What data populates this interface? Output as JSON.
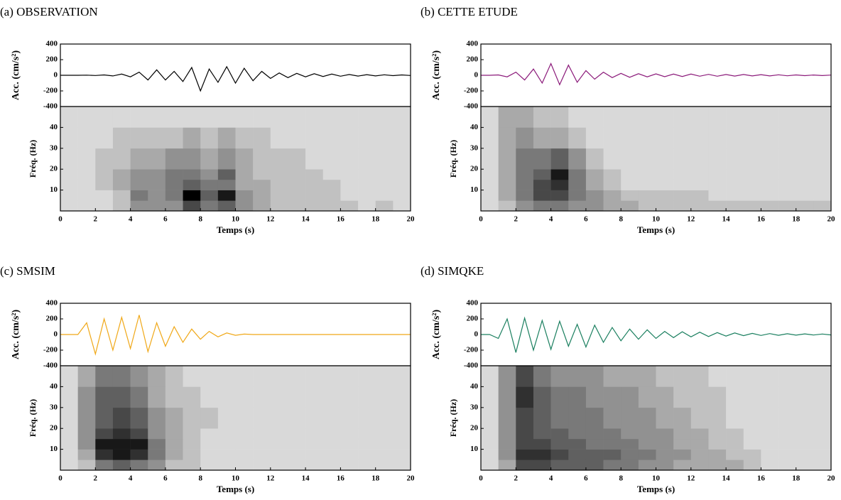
{
  "chart_data": [
    {
      "type": "line",
      "title": "(a) OBSERVATION",
      "ylabel": "Acc. (cm/s²)",
      "x": [
        0,
        0.5,
        1,
        1.5,
        2,
        2.5,
        3,
        3.5,
        4,
        4.5,
        5,
        5.5,
        6,
        6.5,
        7,
        7.5,
        8,
        8.5,
        9,
        9.5,
        10,
        10.5,
        11,
        11.5,
        12,
        12.5,
        13,
        13.5,
        14,
        14.5,
        15,
        15.5,
        16,
        16.5,
        17,
        17.5,
        18,
        18.5,
        19,
        19.5,
        20
      ],
      "series": [
        {
          "color": "#000000",
          "values": [
            0,
            0,
            0,
            2,
            -3,
            5,
            -8,
            15,
            -20,
            40,
            -60,
            70,
            -60,
            50,
            -80,
            100,
            -200,
            80,
            -90,
            110,
            -100,
            90,
            -70,
            50,
            -40,
            30,
            -30,
            25,
            -20,
            20,
            -15,
            15,
            -12,
            10,
            -10,
            8,
            -8,
            6,
            -5,
            5,
            -3
          ]
        }
      ],
      "xlim": [
        0,
        20
      ],
      "ylim": [
        -400,
        400
      ],
      "yticks": [
        -400,
        -200,
        0,
        200,
        400
      ]
    },
    {
      "type": "heatmap",
      "ylabel": "Fréq. (Hz)",
      "xlabel": "Temps (s)",
      "x_edges": [
        0,
        1,
        2,
        3,
        4,
        5,
        6,
        7,
        8,
        9,
        10,
        11,
        12,
        13,
        14,
        15,
        16,
        17,
        18,
        19,
        20
      ],
      "y_edges": [
        0,
        5,
        10,
        15,
        20,
        30,
        40,
        50
      ],
      "values": [
        [
          0,
          0,
          0,
          1,
          3,
          3,
          3,
          6,
          4,
          5,
          3,
          2,
          1,
          1,
          1,
          1,
          1,
          0,
          1,
          0
        ],
        [
          0,
          0,
          0,
          1,
          4,
          3,
          4,
          9,
          5,
          8,
          3,
          2,
          1,
          1,
          1,
          1,
          0,
          0,
          0,
          0
        ],
        [
          0,
          0,
          1,
          2,
          3,
          3,
          4,
          5,
          4,
          4,
          2,
          2,
          1,
          1,
          1,
          1,
          0,
          0,
          0,
          0
        ],
        [
          0,
          0,
          1,
          2,
          3,
          3,
          4,
          4,
          3,
          5,
          2,
          1,
          1,
          1,
          1,
          0,
          0,
          0,
          0,
          0
        ],
        [
          0,
          0,
          1,
          1,
          2,
          2,
          3,
          3,
          2,
          3,
          2,
          1,
          1,
          1,
          0,
          0,
          0,
          0,
          0,
          0
        ],
        [
          0,
          0,
          0,
          1,
          1,
          1,
          1,
          2,
          1,
          2,
          1,
          1,
          0,
          0,
          0,
          0,
          0,
          0,
          0,
          0
        ],
        [
          0,
          0,
          0,
          0,
          0,
          0,
          0,
          0,
          0,
          0,
          0,
          0,
          0,
          0,
          0,
          0,
          0,
          0,
          0,
          0
        ]
      ],
      "xlim": [
        0,
        20
      ],
      "ylim": [
        0,
        50
      ],
      "xticks": [
        0,
        2,
        4,
        6,
        8,
        10,
        12,
        14,
        16,
        18,
        20
      ],
      "yticks": [
        10,
        20,
        30,
        40
      ]
    },
    {
      "type": "line",
      "title": "(b) CETTE ETUDE",
      "ylabel": "Acc. (cm/s²)",
      "x": [
        0,
        0.5,
        1,
        1.5,
        2,
        2.5,
        3,
        3.5,
        4,
        4.5,
        5,
        5.5,
        6,
        6.5,
        7,
        7.5,
        8,
        8.5,
        9,
        9.5,
        10,
        10.5,
        11,
        11.5,
        12,
        12.5,
        13,
        13.5,
        14,
        14.5,
        15,
        15.5,
        16,
        16.5,
        17,
        17.5,
        18,
        18.5,
        19,
        19.5,
        20
      ],
      "series": [
        {
          "color": "#8b1a7a",
          "values": [
            0,
            0,
            5,
            -20,
            40,
            -60,
            80,
            -100,
            150,
            -120,
            130,
            -90,
            60,
            -50,
            40,
            -30,
            25,
            -25,
            20,
            -20,
            18,
            -18,
            15,
            -15,
            15,
            -12,
            12,
            -12,
            10,
            -10,
            10,
            -8,
            8,
            -8,
            6,
            -6,
            5,
            -5,
            4,
            -4,
            3
          ]
        }
      ],
      "xlim": [
        0,
        20
      ],
      "ylim": [
        -400,
        400
      ],
      "yticks": [
        -400,
        -200,
        0,
        200,
        400
      ]
    },
    {
      "type": "heatmap",
      "ylabel": "Fréq. (Hz)",
      "xlabel": "Temps (s)",
      "x_edges": [
        0,
        1,
        2,
        3,
        4,
        5,
        6,
        7,
        8,
        9,
        10,
        11,
        12,
        13,
        14,
        15,
        16,
        17,
        18,
        19,
        20
      ],
      "y_edges": [
        0,
        5,
        10,
        15,
        20,
        30,
        40,
        50
      ],
      "values": [
        [
          0,
          1,
          3,
          4,
          4,
          3,
          3,
          2,
          2,
          1,
          1,
          1,
          1,
          1,
          1,
          1,
          1,
          1,
          1,
          1
        ],
        [
          0,
          2,
          4,
          6,
          6,
          4,
          3,
          2,
          1,
          1,
          1,
          1,
          1,
          0,
          0,
          0,
          0,
          0,
          0,
          0
        ],
        [
          0,
          2,
          4,
          6,
          7,
          4,
          2,
          1,
          0,
          0,
          0,
          0,
          0,
          0,
          0,
          0,
          0,
          0,
          0,
          0
        ],
        [
          0,
          2,
          4,
          5,
          8,
          4,
          2,
          1,
          0,
          0,
          0,
          0,
          0,
          0,
          0,
          0,
          0,
          0,
          0,
          0
        ],
        [
          0,
          2,
          4,
          4,
          5,
          3,
          1,
          0,
          0,
          0,
          0,
          0,
          0,
          0,
          0,
          0,
          0,
          0,
          0,
          0
        ],
        [
          0,
          2,
          3,
          2,
          2,
          1,
          0,
          0,
          0,
          0,
          0,
          0,
          0,
          0,
          0,
          0,
          0,
          0,
          0,
          0
        ],
        [
          0,
          2,
          2,
          1,
          1,
          0,
          0,
          0,
          0,
          0,
          0,
          0,
          0,
          0,
          0,
          0,
          0,
          0,
          0,
          0
        ]
      ],
      "xlim": [
        0,
        20
      ],
      "ylim": [
        0,
        50
      ],
      "xticks": [
        0,
        2,
        4,
        6,
        8,
        10,
        12,
        14,
        16,
        18,
        20
      ],
      "yticks": [
        10,
        20,
        30,
        40
      ]
    },
    {
      "type": "line",
      "title": "(c) SMSIM",
      "ylabel": "Acc. (cm/s²)",
      "x": [
        0,
        0.5,
        1,
        1.5,
        2,
        2.5,
        3,
        3.5,
        4,
        4.5,
        5,
        5.5,
        6,
        6.5,
        7,
        7.5,
        8,
        8.5,
        9,
        9.5,
        10,
        10.5,
        11,
        11.5,
        12,
        12.5,
        13,
        13.5,
        14,
        14.5,
        15,
        15.5,
        16,
        16.5,
        17,
        17.5,
        18,
        18.5,
        19,
        19.5,
        20
      ],
      "series": [
        {
          "color": "#f0a818",
          "values": [
            0,
            0,
            0,
            150,
            -250,
            200,
            -200,
            220,
            -180,
            250,
            -220,
            150,
            -150,
            100,
            -100,
            70,
            -60,
            40,
            -30,
            20,
            -10,
            5,
            0,
            0,
            0,
            0,
            0,
            0,
            0,
            0,
            0,
            0,
            0,
            0,
            0,
            0,
            0,
            0,
            0,
            0,
            0
          ]
        }
      ],
      "xlim": [
        0,
        20
      ],
      "ylim": [
        -400,
        400
      ],
      "yticks": [
        -400,
        -200,
        0,
        200,
        400
      ]
    },
    {
      "type": "heatmap",
      "ylabel": "Fréq. (Hz)",
      "xlabel": "Temps (s)",
      "x_edges": [
        0,
        1,
        2,
        3,
        4,
        5,
        6,
        7,
        8,
        9,
        10,
        11,
        12,
        13,
        14,
        15,
        16,
        17,
        18,
        19,
        20
      ],
      "y_edges": [
        0,
        5,
        10,
        15,
        20,
        30,
        40,
        50
      ],
      "values": [
        [
          0,
          1,
          4,
          5,
          4,
          3,
          1,
          1,
          0,
          0,
          0,
          0,
          0,
          0,
          0,
          0,
          0,
          0,
          0,
          0
        ],
        [
          0,
          2,
          7,
          8,
          7,
          4,
          2,
          1,
          0,
          0,
          0,
          0,
          0,
          0,
          0,
          0,
          0,
          0,
          0,
          0
        ],
        [
          0,
          3,
          8,
          8,
          8,
          4,
          2,
          1,
          0,
          0,
          0,
          0,
          0,
          0,
          0,
          0,
          0,
          0,
          0,
          0
        ],
        [
          0,
          3,
          6,
          7,
          6,
          3,
          2,
          1,
          0,
          0,
          0,
          0,
          0,
          0,
          0,
          0,
          0,
          0,
          0,
          0
        ],
        [
          0,
          3,
          5,
          6,
          5,
          3,
          2,
          1,
          1,
          0,
          0,
          0,
          0,
          0,
          0,
          0,
          0,
          0,
          0,
          0
        ],
        [
          0,
          3,
          5,
          5,
          4,
          2,
          1,
          1,
          0,
          0,
          0,
          0,
          0,
          0,
          0,
          0,
          0,
          0,
          0,
          0
        ],
        [
          0,
          2,
          4,
          4,
          3,
          2,
          1,
          0,
          0,
          0,
          0,
          0,
          0,
          0,
          0,
          0,
          0,
          0,
          0,
          0
        ]
      ],
      "xlim": [
        0,
        20
      ],
      "ylim": [
        0,
        50
      ],
      "xticks": [
        0,
        2,
        4,
        6,
        8,
        10,
        12,
        14,
        16,
        18,
        20
      ],
      "yticks": [
        10,
        20,
        30,
        40
      ]
    },
    {
      "type": "line",
      "title": "(d) SIMQKE",
      "ylabel": "Acc. (cm/s²)",
      "x": [
        0,
        0.5,
        1,
        1.5,
        2,
        2.5,
        3,
        3.5,
        4,
        4.5,
        5,
        5.5,
        6,
        6.5,
        7,
        7.5,
        8,
        8.5,
        9,
        9.5,
        10,
        10.5,
        11,
        11.5,
        12,
        12.5,
        13,
        13.5,
        14,
        14.5,
        15,
        15.5,
        16,
        16.5,
        17,
        17.5,
        18,
        18.5,
        19,
        19.5,
        20
      ],
      "series": [
        {
          "color": "#1a7f5f",
          "values": [
            0,
            0,
            -50,
            200,
            -230,
            210,
            -200,
            180,
            -190,
            170,
            -150,
            130,
            -160,
            120,
            -100,
            90,
            -80,
            70,
            -60,
            60,
            -50,
            40,
            -40,
            35,
            -30,
            30,
            -25,
            25,
            -20,
            20,
            -15,
            15,
            -12,
            12,
            -10,
            10,
            -8,
            8,
            -6,
            6,
            -5
          ]
        }
      ],
      "xlim": [
        0,
        20
      ],
      "ylim": [
        -400,
        400
      ],
      "yticks": [
        -400,
        -200,
        0,
        200,
        400
      ]
    },
    {
      "type": "heatmap",
      "ylabel": "Fréq. (Hz)",
      "xlabel": "Temps (s)",
      "x_edges": [
        0,
        1,
        2,
        3,
        4,
        5,
        6,
        7,
        8,
        9,
        10,
        11,
        12,
        13,
        14,
        15,
        16,
        17,
        18,
        19,
        20
      ],
      "y_edges": [
        0,
        5,
        10,
        15,
        20,
        30,
        40,
        50
      ],
      "values": [
        [
          0,
          2,
          6,
          6,
          5,
          5,
          5,
          4,
          4,
          3,
          3,
          2,
          2,
          2,
          2,
          1,
          0,
          0,
          0,
          0
        ],
        [
          0,
          3,
          7,
          7,
          6,
          5,
          5,
          5,
          4,
          4,
          3,
          3,
          2,
          2,
          1,
          1,
          0,
          0,
          0,
          0
        ],
        [
          0,
          3,
          6,
          6,
          5,
          5,
          4,
          4,
          4,
          3,
          3,
          2,
          2,
          1,
          1,
          0,
          0,
          0,
          0,
          0
        ],
        [
          0,
          3,
          6,
          5,
          5,
          4,
          4,
          4,
          3,
          3,
          3,
          2,
          2,
          1,
          1,
          0,
          0,
          0,
          0,
          0
        ],
        [
          0,
          3,
          6,
          5,
          4,
          4,
          4,
          3,
          3,
          3,
          2,
          2,
          1,
          1,
          0,
          0,
          0,
          0,
          0,
          0
        ],
        [
          0,
          3,
          7,
          5,
          4,
          4,
          3,
          3,
          3,
          2,
          2,
          1,
          1,
          1,
          0,
          0,
          0,
          0,
          0,
          0
        ],
        [
          0,
          3,
          6,
          4,
          3,
          3,
          3,
          2,
          2,
          2,
          1,
          1,
          1,
          0,
          0,
          0,
          0,
          0,
          0,
          0
        ]
      ],
      "xlim": [
        0,
        20
      ],
      "ylim": [
        0,
        50
      ],
      "xticks": [
        0,
        2,
        4,
        6,
        8,
        10,
        12,
        14,
        16,
        18,
        20
      ],
      "yticks": [
        10,
        20,
        30,
        40
      ]
    }
  ]
}
